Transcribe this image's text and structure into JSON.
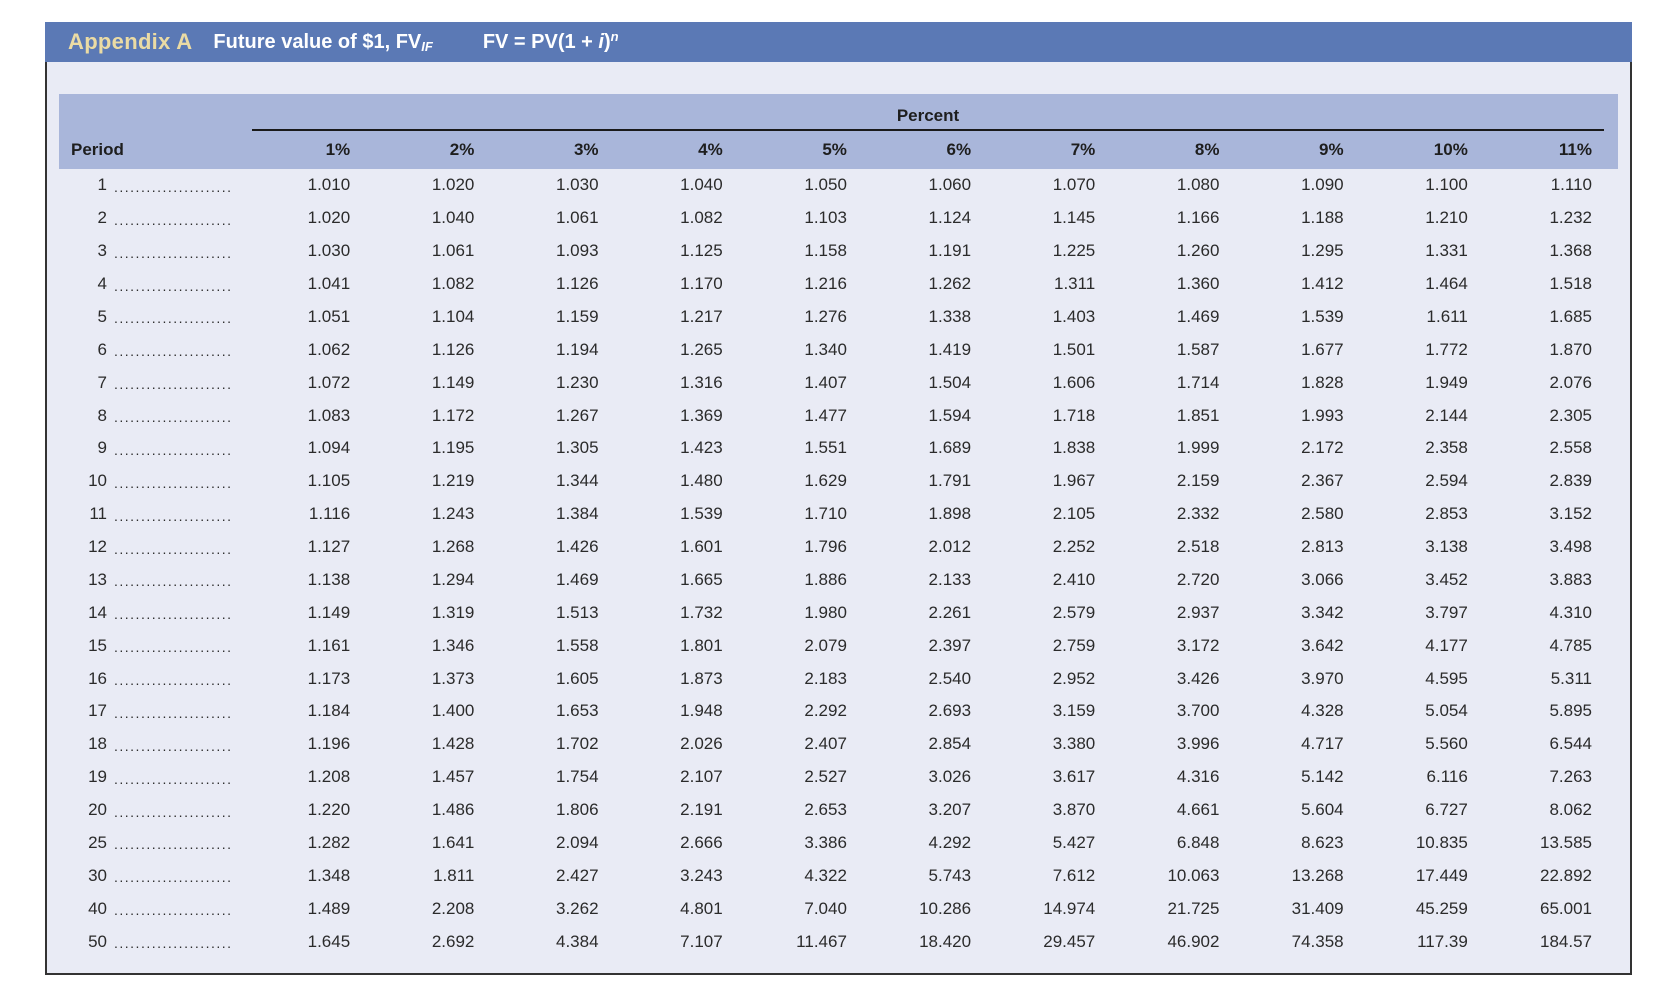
{
  "header": {
    "appendix_label": "Appendix A",
    "title_prefix": "Future value of $1, FV",
    "title_subscript": "IF",
    "formula_lhs": "FV = PV(1 + ",
    "formula_variable": "i",
    "formula_rparen": ")",
    "formula_exponent": "n"
  },
  "table": {
    "group_header": "Percent",
    "period_header": "Period",
    "column_headers": [
      "1%",
      "2%",
      "3%",
      "4%",
      "5%",
      "6%",
      "7%",
      "8%",
      "9%",
      "10%",
      "11%"
    ],
    "row_leader": "......................",
    "rows": [
      {
        "period": "1",
        "values": [
          "1.010",
          "1.020",
          "1.030",
          "1.040",
          "1.050",
          "1.060",
          "1.070",
          "1.080",
          "1.090",
          "1.100",
          "1.110"
        ]
      },
      {
        "period": "2",
        "values": [
          "1.020",
          "1.040",
          "1.061",
          "1.082",
          "1.103",
          "1.124",
          "1.145",
          "1.166",
          "1.188",
          "1.210",
          "1.232"
        ]
      },
      {
        "period": "3",
        "values": [
          "1.030",
          "1.061",
          "1.093",
          "1.125",
          "1.158",
          "1.191",
          "1.225",
          "1.260",
          "1.295",
          "1.331",
          "1.368"
        ]
      },
      {
        "period": "4",
        "values": [
          "1.041",
          "1.082",
          "1.126",
          "1.170",
          "1.216",
          "1.262",
          "1.311",
          "1.360",
          "1.412",
          "1.464",
          "1.518"
        ]
      },
      {
        "period": "5",
        "values": [
          "1.051",
          "1.104",
          "1.159",
          "1.217",
          "1.276",
          "1.338",
          "1.403",
          "1.469",
          "1.539",
          "1.611",
          "1.685"
        ]
      },
      {
        "period": "6",
        "values": [
          "1.062",
          "1.126",
          "1.194",
          "1.265",
          "1.340",
          "1.419",
          "1.501",
          "1.587",
          "1.677",
          "1.772",
          "1.870"
        ]
      },
      {
        "period": "7",
        "values": [
          "1.072",
          "1.149",
          "1.230",
          "1.316",
          "1.407",
          "1.504",
          "1.606",
          "1.714",
          "1.828",
          "1.949",
          "2.076"
        ]
      },
      {
        "period": "8",
        "values": [
          "1.083",
          "1.172",
          "1.267",
          "1.369",
          "1.477",
          "1.594",
          "1.718",
          "1.851",
          "1.993",
          "2.144",
          "2.305"
        ]
      },
      {
        "period": "9",
        "values": [
          "1.094",
          "1.195",
          "1.305",
          "1.423",
          "1.551",
          "1.689",
          "1.838",
          "1.999",
          "2.172",
          "2.358",
          "2.558"
        ]
      },
      {
        "period": "10",
        "values": [
          "1.105",
          "1.219",
          "1.344",
          "1.480",
          "1.629",
          "1.791",
          "1.967",
          "2.159",
          "2.367",
          "2.594",
          "2.839"
        ]
      },
      {
        "period": "11",
        "values": [
          "1.116",
          "1.243",
          "1.384",
          "1.539",
          "1.710",
          "1.898",
          "2.105",
          "2.332",
          "2.580",
          "2.853",
          "3.152"
        ]
      },
      {
        "period": "12",
        "values": [
          "1.127",
          "1.268",
          "1.426",
          "1.601",
          "1.796",
          "2.012",
          "2.252",
          "2.518",
          "2.813",
          "3.138",
          "3.498"
        ]
      },
      {
        "period": "13",
        "values": [
          "1.138",
          "1.294",
          "1.469",
          "1.665",
          "1.886",
          "2.133",
          "2.410",
          "2.720",
          "3.066",
          "3.452",
          "3.883"
        ]
      },
      {
        "period": "14",
        "values": [
          "1.149",
          "1.319",
          "1.513",
          "1.732",
          "1.980",
          "2.261",
          "2.579",
          "2.937",
          "3.342",
          "3.797",
          "4.310"
        ]
      },
      {
        "period": "15",
        "values": [
          "1.161",
          "1.346",
          "1.558",
          "1.801",
          "2.079",
          "2.397",
          "2.759",
          "3.172",
          "3.642",
          "4.177",
          "4.785"
        ]
      },
      {
        "period": "16",
        "values": [
          "1.173",
          "1.373",
          "1.605",
          "1.873",
          "2.183",
          "2.540",
          "2.952",
          "3.426",
          "3.970",
          "4.595",
          "5.311"
        ]
      },
      {
        "period": "17",
        "values": [
          "1.184",
          "1.400",
          "1.653",
          "1.948",
          "2.292",
          "2.693",
          "3.159",
          "3.700",
          "4.328",
          "5.054",
          "5.895"
        ]
      },
      {
        "period": "18",
        "values": [
          "1.196",
          "1.428",
          "1.702",
          "2.026",
          "2.407",
          "2.854",
          "3.380",
          "3.996",
          "4.717",
          "5.560",
          "6.544"
        ]
      },
      {
        "period": "19",
        "values": [
          "1.208",
          "1.457",
          "1.754",
          "2.107",
          "2.527",
          "3.026",
          "3.617",
          "4.316",
          "5.142",
          "6.116",
          "7.263"
        ]
      },
      {
        "period": "20",
        "values": [
          "1.220",
          "1.486",
          "1.806",
          "2.191",
          "2.653",
          "3.207",
          "3.870",
          "4.661",
          "5.604",
          "6.727",
          "8.062"
        ]
      },
      {
        "period": "25",
        "values": [
          "1.282",
          "1.641",
          "2.094",
          "2.666",
          "3.386",
          "4.292",
          "5.427",
          "6.848",
          "8.623",
          "10.835",
          "13.585"
        ]
      },
      {
        "period": "30",
        "values": [
          "1.348",
          "1.811",
          "2.427",
          "3.243",
          "4.322",
          "5.743",
          "7.612",
          "10.063",
          "13.268",
          "17.449",
          "22.892"
        ]
      },
      {
        "period": "40",
        "values": [
          "1.489",
          "2.208",
          "3.262",
          "4.801",
          "7.040",
          "10.286",
          "14.974",
          "21.725",
          "31.409",
          "45.259",
          "65.001"
        ]
      },
      {
        "period": "50",
        "values": [
          "1.645",
          "2.692",
          "4.384",
          "7.107",
          "11.467",
          "18.420",
          "29.457",
          "46.902",
          "74.358",
          "117.39",
          "184.57"
        ]
      }
    ]
  },
  "colors": {
    "top_bar": "#5b79b5",
    "appendix_label": "#ebdba4",
    "header_band": "#a9b6da",
    "panel_background": "#e9ebf5",
    "border": "#333333",
    "text": "#2b2b2b"
  }
}
